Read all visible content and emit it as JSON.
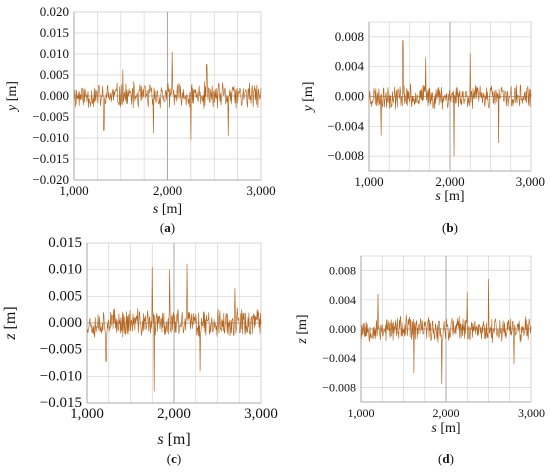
{
  "series_color": "#b5651d",
  "chart_data": [
    {
      "id": "a",
      "type": "line",
      "panel_label": "(a)",
      "panel_letter": "a",
      "xlabel_var": "s",
      "xlabel_unit": " [m]",
      "ylabel_var": "y",
      "ylabel_unit": " [m]",
      "xlim": [
        1000,
        3000
      ],
      "ylim": [
        -0.02,
        0.02
      ],
      "x_ticks": [
        1000,
        2000,
        3000
      ],
      "x_tick_labels": [
        "1,000",
        "2,000",
        "3,000"
      ],
      "y_ticks": [
        -0.02,
        -0.015,
        -0.01,
        -0.005,
        0.0,
        0.005,
        0.01,
        0.015,
        0.02
      ],
      "y_tick_labels": [
        "−0.020",
        "−0.015",
        "−0.010",
        "−0.005",
        "0.000",
        "0.005",
        "0.010",
        "0.015",
        "0.020"
      ],
      "grid": true,
      "samples": 360,
      "amplitude": 0.0035,
      "seed": 11,
      "peaks": [
        [
          1520,
          0.0062
        ],
        [
          2050,
          0.0105
        ],
        [
          2250,
          -0.0105
        ],
        [
          2650,
          -0.0095
        ],
        [
          1320,
          -0.0082
        ],
        [
          2420,
          0.0075
        ],
        [
          1850,
          -0.0088
        ]
      ]
    },
    {
      "id": "b",
      "type": "line",
      "panel_label": "(b)",
      "panel_letter": "b",
      "xlabel_var": "s",
      "xlabel_unit": " [m]",
      "ylabel_var": "y",
      "ylabel_unit": " [m]",
      "xlim": [
        1000,
        3000
      ],
      "ylim": [
        -0.01,
        0.01
      ],
      "x_ticks": [
        1000,
        2000,
        3000
      ],
      "x_tick_labels": [
        "1,000",
        "2,000",
        "3,000"
      ],
      "y_ticks": [
        -0.008,
        -0.004,
        0.0,
        0.004,
        0.008
      ],
      "y_tick_labels": [
        "−0.008",
        "−0.004",
        "0.000",
        "0.004",
        "0.008"
      ],
      "grid": true,
      "samples": 360,
      "amplitude": 0.0018,
      "seed": 23,
      "peaks": [
        [
          1420,
          0.0075
        ],
        [
          2050,
          -0.008
        ],
        [
          2600,
          -0.0062
        ],
        [
          2250,
          0.0058
        ],
        [
          1150,
          -0.0052
        ],
        [
          1700,
          0.0052
        ]
      ]
    },
    {
      "id": "c",
      "type": "line",
      "panel_label": "(c)",
      "panel_letter": "c",
      "xlabel_var": "s",
      "xlabel_unit": " [m]",
      "ylabel_var": "z",
      "ylabel_unit": " [m]",
      "xlim": [
        1000,
        3000
      ],
      "ylim": [
        -0.015,
        0.015
      ],
      "x_ticks": [
        1000,
        2000,
        3000
      ],
      "x_tick_labels": [
        "1,000",
        "2,000",
        "3,000"
      ],
      "y_ticks": [
        -0.015,
        -0.01,
        -0.005,
        0.0,
        0.005,
        0.01,
        0.015
      ],
      "y_tick_labels": [
        "−0.015",
        "−0.010",
        "−0.005",
        "0.000",
        "0.005",
        "0.010",
        "0.015"
      ],
      "grid": true,
      "samples": 360,
      "amplitude": 0.003,
      "seed": 37,
      "peaks": [
        [
          1750,
          0.0105
        ],
        [
          1770,
          -0.0128
        ],
        [
          1950,
          0.01
        ],
        [
          2150,
          0.011
        ],
        [
          1220,
          -0.0072
        ],
        [
          2300,
          -0.009
        ],
        [
          2700,
          0.0065
        ]
      ]
    },
    {
      "id": "d",
      "type": "line",
      "panel_label": "(d)",
      "panel_letter": "d",
      "xlabel_var": "s",
      "xlabel_unit": " [m]",
      "ylabel_var": "z",
      "ylabel_unit": " [m]",
      "xlim": [
        1000,
        3000
      ],
      "ylim": [
        -0.01,
        0.01
      ],
      "x_ticks": [
        1000,
        2000,
        3000
      ],
      "x_tick_labels": [
        "1,000",
        "2,000",
        "3,000"
      ],
      "y_ticks": [
        -0.008,
        -0.004,
        0.0,
        0.004,
        0.008
      ],
      "y_tick_labels": [
        "−0.008",
        "−0.004",
        "0.000",
        "0.004",
        "0.008"
      ],
      "grid": true,
      "samples": 360,
      "amplitude": 0.002,
      "seed": 53,
      "peaks": [
        [
          2500,
          0.0068
        ],
        [
          1950,
          -0.0075
        ],
        [
          1620,
          -0.006
        ],
        [
          1200,
          0.0048
        ],
        [
          2250,
          0.005
        ],
        [
          2800,
          -0.0048
        ]
      ]
    }
  ]
}
